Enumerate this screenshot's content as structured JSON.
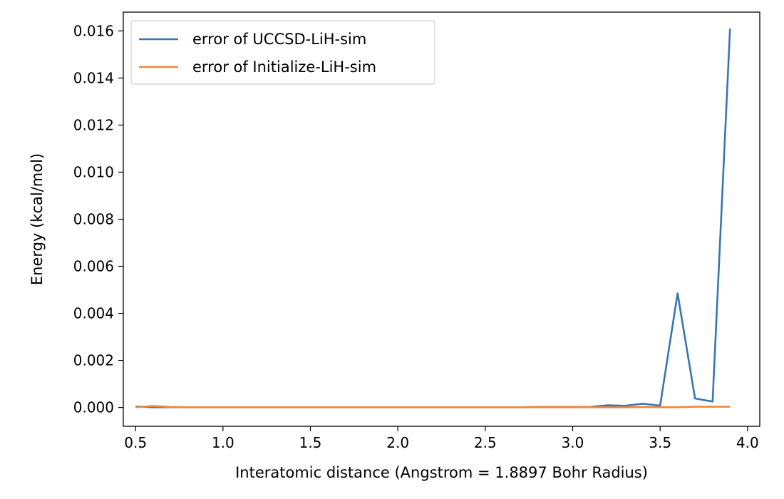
{
  "chart_data": {
    "type": "line",
    "title": "",
    "xlabel": "Interatomic distance (Angstrom = 1.8897 Bohr Radius)",
    "ylabel": "Energy (kcal/mol)",
    "xlim": [
      0.43,
      4.07
    ],
    "ylim": [
      -0.0008,
      0.0168
    ],
    "xticks": [
      0.5,
      1.0,
      1.5,
      2.0,
      2.5,
      3.0,
      3.5,
      4.0
    ],
    "xtick_labels": [
      "0.5",
      "1.0",
      "1.5",
      "2.0",
      "2.5",
      "3.0",
      "3.5",
      "4.0"
    ],
    "yticks": [
      0.0,
      0.002,
      0.004,
      0.006,
      0.008,
      0.01,
      0.012,
      0.014,
      0.016
    ],
    "ytick_labels": [
      "0.000",
      "0.002",
      "0.004",
      "0.006",
      "0.008",
      "0.010",
      "0.012",
      "0.014",
      "0.016"
    ],
    "grid": false,
    "legend_position": "top-left",
    "x": [
      0.5,
      0.6,
      0.7,
      0.8,
      0.9,
      1.0,
      1.1,
      1.2,
      1.3,
      1.4,
      1.5,
      1.6,
      1.7,
      1.8,
      1.9,
      2.0,
      2.1,
      2.2,
      2.3,
      2.4,
      2.5,
      2.6,
      2.7,
      2.8,
      2.9,
      3.0,
      3.1,
      3.2,
      3.3,
      3.4,
      3.5,
      3.6,
      3.7,
      3.8,
      3.9
    ],
    "series": [
      {
        "name": "error of UCCSD-LiH-sim",
        "color": "#3b75af",
        "values": [
          4e-05,
          1e-05,
          1e-05,
          1e-05,
          1e-05,
          1e-05,
          1e-05,
          1e-05,
          1e-05,
          1e-05,
          1e-05,
          1e-05,
          1e-05,
          1e-05,
          1e-05,
          1e-05,
          1e-05,
          1e-05,
          1e-05,
          1e-05,
          1e-05,
          1e-05,
          1e-05,
          2e-05,
          2e-05,
          2e-05,
          2e-05,
          9e-05,
          7e-05,
          0.00016,
          8e-05,
          0.00485,
          0.00038,
          0.00025,
          0.0161
        ]
      },
      {
        "name": "error of Initialize-LiH-sim",
        "color": "#ef8636",
        "values": [
          1e-05,
          6e-05,
          2e-05,
          1e-05,
          1e-05,
          1e-05,
          1e-05,
          1e-05,
          1e-05,
          1e-05,
          1e-05,
          1e-05,
          1e-05,
          1e-05,
          1e-05,
          1e-05,
          1e-05,
          1e-05,
          1e-05,
          1e-05,
          1e-05,
          1e-05,
          1e-05,
          1e-05,
          1e-05,
          1e-05,
          1e-05,
          1e-05,
          1e-05,
          2e-05,
          1e-05,
          1e-05,
          3e-05,
          3e-05,
          3e-05
        ]
      }
    ]
  }
}
